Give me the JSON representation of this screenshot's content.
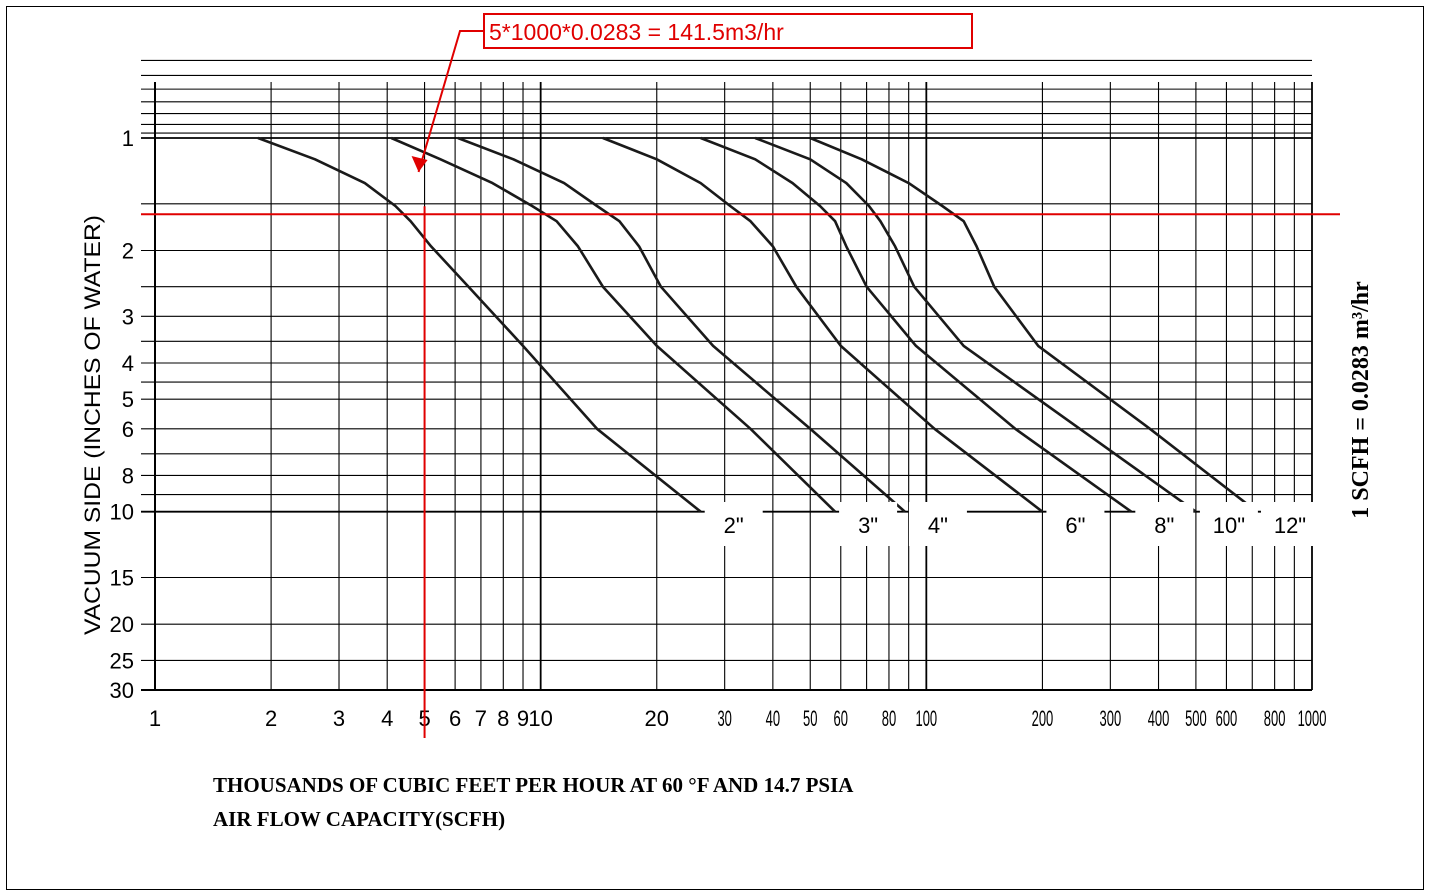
{
  "chart_data": {
    "type": "line",
    "xlabel": "THOUSANDS OF CUBIC FEET PER HOUR AT 60 °F AND 14.7 PSIA",
    "xlabel2": "AIR FLOW CAPACITY(SCFH)",
    "ylabel": "VACUUM SIDE (INCHES OF WATER)",
    "x_scale": "log",
    "y_scale": "log",
    "xlim": [
      1,
      1000
    ],
    "ylim": [
      0.6,
      30
    ],
    "y_inverted": true,
    "grid": true,
    "x_ticks": [
      "1",
      "2",
      "3",
      "4",
      "5",
      "6",
      "7",
      "8",
      "9",
      "10",
      "20",
      "30",
      "40",
      "50",
      "60",
      "80",
      "100",
      "200",
      "300",
      "400",
      "500",
      "600",
      "800",
      "1000"
    ],
    "y_ticks": [
      "1",
      "2",
      "3",
      "4",
      "5",
      "6",
      "8",
      "10",
      "15",
      "20",
      "25",
      "30"
    ],
    "series": [
      {
        "name": "2\"",
        "x": [
          1.85,
          2.6,
          3.5,
          4.2,
          4.6,
          5.2,
          6.5,
          9,
          14,
          26
        ],
        "y": [
          1.0,
          1.14,
          1.32,
          1.52,
          1.67,
          1.95,
          2.5,
          3.6,
          6.0,
          10
        ]
      },
      {
        "name": "3\"",
        "x": [
          4.1,
          5.5,
          7.5,
          9.5,
          11,
          12.5,
          14.5,
          20,
          35,
          58
        ],
        "y": [
          1.0,
          1.14,
          1.32,
          1.52,
          1.67,
          1.95,
          2.5,
          3.6,
          6.0,
          10
        ]
      },
      {
        "name": "4\"",
        "x": [
          6.1,
          8.5,
          11.5,
          14,
          16,
          18,
          20.5,
          28,
          50,
          88
        ],
        "y": [
          1.0,
          1.14,
          1.32,
          1.52,
          1.67,
          1.95,
          2.5,
          3.6,
          6.0,
          10
        ]
      },
      {
        "name": "6\"",
        "x": [
          14.5,
          20,
          26,
          31,
          35,
          40,
          46,
          60,
          105,
          200
        ],
        "y": [
          1.0,
          1.14,
          1.32,
          1.52,
          1.67,
          1.95,
          2.5,
          3.6,
          6.0,
          10
        ]
      },
      {
        "name": "8\"",
        "x": [
          26,
          36,
          45,
          53,
          58,
          62,
          70,
          94,
          170,
          340
        ],
        "y": [
          1.0,
          1.14,
          1.32,
          1.52,
          1.67,
          1.95,
          2.5,
          3.6,
          6.0,
          10
        ]
      },
      {
        "name": "10\"",
        "x": [
          36,
          50,
          62,
          71,
          76,
          83,
          93,
          125,
          250,
          500
        ],
        "y": [
          1.0,
          1.14,
          1.32,
          1.52,
          1.67,
          1.95,
          2.5,
          3.6,
          6.0,
          10
        ]
      },
      {
        "name": "12\"",
        "x": [
          50,
          68,
          90,
          110,
          125,
          135,
          150,
          195,
          380,
          720
        ],
        "y": [
          1.0,
          1.14,
          1.32,
          1.52,
          1.67,
          1.95,
          2.5,
          3.6,
          6.0,
          10
        ]
      }
    ],
    "size_labels": [
      "2\"",
      "3\"",
      "4\"",
      "6\"",
      "8\"",
      "10\"",
      "12\""
    ],
    "annotations": {
      "callout_text": "5*1000*0.0283 = 141.5m3/hr",
      "marker_x": 5,
      "marker_y": 1.6,
      "conversion_text": "1 SCFH = 0.0283 m³/hr",
      "color": "#e00000"
    }
  }
}
